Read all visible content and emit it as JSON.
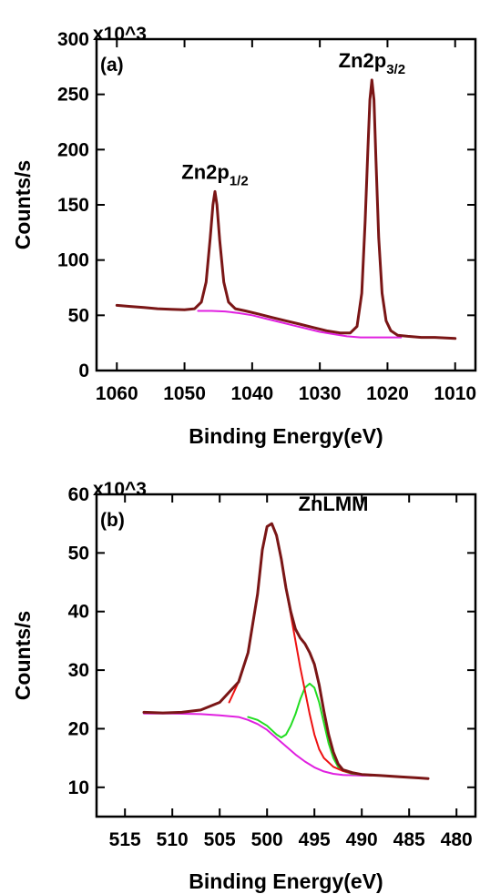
{
  "chart_data": [
    {
      "type": "line",
      "panel_label": "(a)",
      "multiplier": "x10^3",
      "xlabel": "Binding Energy(eV)",
      "ylabel": "Counts/s",
      "xlim": [
        1063,
        1007
      ],
      "ylim": [
        0,
        300
      ],
      "x_reversed": true,
      "x_ticks": [
        1060,
        1050,
        1040,
        1030,
        1020,
        1010
      ],
      "y_ticks": [
        0,
        50,
        100,
        150,
        200,
        250,
        300
      ],
      "annotations": [
        {
          "base": "Zn2p",
          "sub": "1/2",
          "x": 1045.5,
          "y": 162
        },
        {
          "base": "Zn2p",
          "sub": "3/2",
          "x": 1022.3,
          "y": 263
        }
      ],
      "colors": {
        "data": "#7a1616",
        "background": "#e020e0"
      },
      "series": [
        {
          "role": "data",
          "x": [
            1060,
            1058,
            1056,
            1054,
            1052,
            1050,
            1048.5,
            1047.5,
            1046.8,
            1046.2,
            1045.8,
            1045.5,
            1045.2,
            1044.8,
            1044.2,
            1043.5,
            1042.5,
            1041,
            1039,
            1037,
            1035,
            1033,
            1031,
            1029,
            1027,
            1025.5,
            1024.5,
            1023.8,
            1023.3,
            1022.9,
            1022.6,
            1022.3,
            1022.0,
            1021.7,
            1021.3,
            1020.8,
            1020.2,
            1019.5,
            1018.5,
            1017,
            1015,
            1013,
            1010
          ],
          "y": [
            59,
            58,
            57,
            56,
            55.5,
            55,
            56,
            62,
            80,
            120,
            150,
            162,
            150,
            118,
            80,
            62,
            56,
            54,
            51,
            48,
            45,
            42,
            39,
            36,
            34,
            34,
            40,
            70,
            135,
            200,
            245,
            263,
            245,
            190,
            120,
            70,
            45,
            36,
            32,
            31,
            30,
            30,
            29
          ]
        },
        {
          "role": "background",
          "x": [
            1048,
            1046,
            1044,
            1042,
            1040,
            1038,
            1036,
            1034,
            1032,
            1030,
            1028,
            1026,
            1024,
            1022,
            1020,
            1018
          ],
          "y": [
            54,
            54,
            53.5,
            52,
            50,
            47,
            44,
            41,
            38,
            35,
            33,
            31,
            30,
            30,
            30,
            30
          ]
        }
      ]
    },
    {
      "type": "line",
      "panel_label": "(b)",
      "multiplier": "x10^3",
      "xlabel": "Binding Energy(eV)",
      "ylabel": "Counts/s",
      "xlim": [
        518,
        478
      ],
      "ylim": [
        5,
        60
      ],
      "x_reversed": true,
      "x_ticks": [
        515,
        510,
        505,
        500,
        495,
        490,
        485,
        480
      ],
      "y_ticks": [
        10,
        20,
        30,
        40,
        50,
        60
      ],
      "annotations": [
        {
          "base": "ZnLMM",
          "sub": "",
          "x": 493,
          "y": 55
        }
      ],
      "colors": {
        "data": "#7a1616",
        "component1": "#ee1111",
        "component2": "#22dd22",
        "background": "#e020e0"
      },
      "series": [
        {
          "role": "data",
          "x": [
            513,
            511,
            509,
            507,
            505,
            503,
            502,
            501,
            500.5,
            500,
            499.5,
            499,
            498.5,
            498,
            497.5,
            497,
            496.5,
            496,
            495.5,
            495,
            494.5,
            494,
            493.5,
            493,
            492.5,
            492,
            491,
            490,
            488,
            486,
            484,
            483
          ],
          "y": [
            22.8,
            22.7,
            22.8,
            23.2,
            24.5,
            28,
            33,
            43,
            50.5,
            54.5,
            55,
            53,
            49,
            44,
            40,
            37,
            35.5,
            34.5,
            33,
            31,
            27.5,
            23,
            19,
            16,
            14,
            13,
            12.5,
            12.2,
            12,
            11.8,
            11.6,
            11.5
          ]
        },
        {
          "role": "component1",
          "x": [
            504,
            503,
            502,
            501,
            500.5,
            500,
            499.5,
            499,
            498.5,
            498,
            497.5,
            497,
            496.5,
            496,
            495.5,
            495,
            494.5,
            494,
            493,
            492,
            491,
            490,
            489
          ],
          "y": [
            24.5,
            28,
            33,
            43,
            50.5,
            54.5,
            55,
            53,
            49,
            44,
            39.5,
            35,
            30.5,
            26.5,
            22.5,
            19,
            16.5,
            15,
            13.5,
            12.8,
            12.4,
            12.2,
            12
          ]
        },
        {
          "role": "component2",
          "x": [
            502,
            501,
            500,
            499,
            498.5,
            498,
            497.5,
            497,
            496.5,
            496,
            495.5,
            495,
            494.5,
            494,
            493.5,
            493,
            492.5,
            492,
            491,
            490
          ],
          "y": [
            22,
            21.5,
            20.5,
            19,
            18.5,
            19,
            20.5,
            22.5,
            25,
            27,
            27.7,
            27,
            24.5,
            21,
            17.5,
            15,
            13.5,
            12.8,
            12.3,
            12.2
          ]
        },
        {
          "role": "background",
          "x": [
            513,
            510,
            507,
            505,
            503,
            502,
            501,
            500,
            499,
            498,
            497,
            496,
            495,
            494,
            493,
            492,
            490,
            488
          ],
          "y": [
            22.6,
            22.6,
            22.5,
            22.3,
            22,
            21.5,
            20.8,
            19.8,
            18.4,
            17,
            15.6,
            14.4,
            13.4,
            12.7,
            12.3,
            12.1,
            12,
            12
          ]
        }
      ]
    }
  ]
}
